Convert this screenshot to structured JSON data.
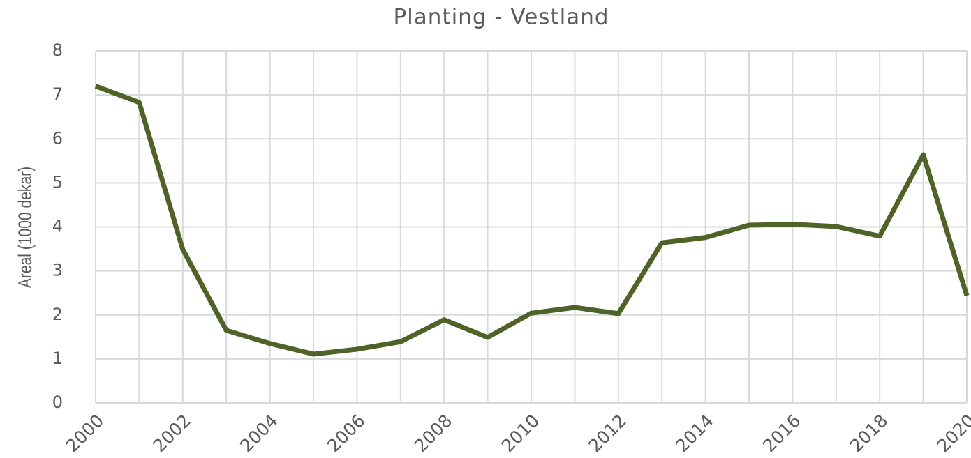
{
  "chart_data": {
    "type": "line",
    "title": "Planting - Vestland",
    "y_label": "Areal (1000 dekar)",
    "x": [
      2000,
      2001,
      2002,
      2003,
      2004,
      2005,
      2006,
      2007,
      2008,
      2009,
      2010,
      2011,
      2012,
      2013,
      2014,
      2015,
      2016,
      2017,
      2018,
      2019,
      2020
    ],
    "series": [
      {
        "name": "Vestland",
        "color": "#4f6228",
        "values": [
          7.2,
          6.83,
          3.49,
          1.65,
          1.35,
          1.11,
          1.22,
          1.39,
          1.89,
          1.49,
          2.04,
          2.17,
          2.03,
          3.64,
          3.76,
          4.04,
          4.06,
          4.01,
          3.79,
          5.64,
          2.44
        ]
      }
    ],
    "xlim": [
      2000,
      2020
    ],
    "xticks": [
      2000,
      2002,
      2004,
      2006,
      2008,
      2010,
      2012,
      2014,
      2016,
      2018,
      2020
    ],
    "ylim": [
      0,
      8
    ],
    "yticks": [
      0,
      1,
      2,
      3,
      4,
      5,
      6,
      7,
      8
    ],
    "grid": true
  }
}
